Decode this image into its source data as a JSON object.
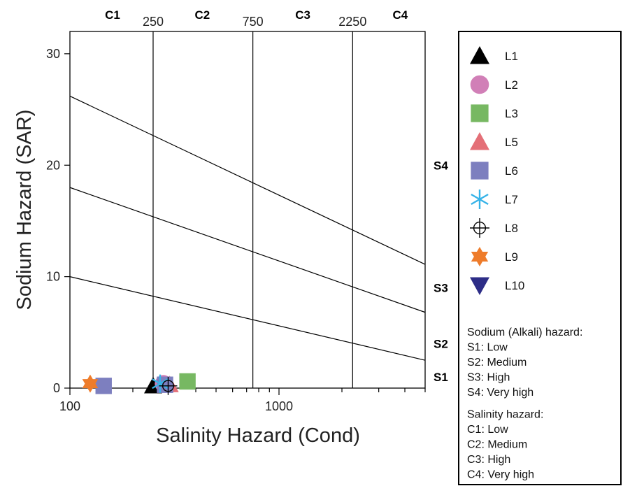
{
  "chart_data": {
    "type": "scatter",
    "xlabel": "Salinity Hazard (Cond)",
    "ylabel": "Sodium Hazard (SAR)",
    "x_scale": "log",
    "xlim": [
      100,
      5000
    ],
    "ylim": [
      0,
      32
    ],
    "x_ticks": [
      {
        "value": 100,
        "label": "100"
      },
      {
        "value": 1000,
        "label": "1000"
      }
    ],
    "y_ticks": [
      {
        "value": 0,
        "label": "0"
      },
      {
        "value": 10,
        "label": "10"
      },
      {
        "value": 20,
        "label": "20"
      },
      {
        "value": 30,
        "label": "30"
      }
    ],
    "salinity_boundaries": [
      {
        "value": 250,
        "label": "250"
      },
      {
        "value": 750,
        "label": "750"
      },
      {
        "value": 2250,
        "label": "2250"
      }
    ],
    "salinity_classes": [
      {
        "label": "C1",
        "x": 160
      },
      {
        "label": "C2",
        "x": 430
      },
      {
        "label": "C3",
        "x": 1300
      },
      {
        "label": "C4",
        "x": 3800
      }
    ],
    "sodium_lines": [
      {
        "points": [
          [
            100,
            10
          ],
          [
            5000,
            2.5
          ]
        ]
      },
      {
        "points": [
          [
            100,
            18
          ],
          [
            5000,
            6.8
          ]
        ]
      },
      {
        "points": [
          [
            100,
            26.2
          ],
          [
            5000,
            11.1
          ]
        ]
      }
    ],
    "sodium_classes": [
      {
        "label": "S1",
        "y": 1.0
      },
      {
        "label": "S2",
        "y": 4.0
      },
      {
        "label": "S3",
        "y": 9.0
      },
      {
        "label": "S4",
        "y": 20.0
      }
    ],
    "series": [
      {
        "name": "L1",
        "marker": "triangle-up",
        "color": "#000000",
        "points": [
          [
            250,
            0.2
          ]
        ]
      },
      {
        "name": "L2",
        "marker": "circle",
        "color": "#d17fb7",
        "points": [
          [
            280,
            0.4
          ]
        ]
      },
      {
        "name": "L3",
        "marker": "square",
        "color": "#77b862",
        "points": [
          [
            365,
            0.6
          ]
        ]
      },
      {
        "name": "L5",
        "marker": "triangle-up",
        "color": "#e46f77",
        "points": [
          [
            300,
            0.3
          ]
        ]
      },
      {
        "name": "L6",
        "marker": "square",
        "color": "#7d7fbf",
        "points": [
          [
            145,
            0.2
          ],
          [
            285,
            0.3
          ]
        ]
      },
      {
        "name": "L7",
        "marker": "asterisk",
        "color": "#36b3e8",
        "points": [
          [
            270,
            0.4
          ]
        ]
      },
      {
        "name": "L8",
        "marker": "crosshair-circle",
        "color": "#000000",
        "points": [
          [
            295,
            0.2
          ]
        ]
      },
      {
        "name": "L9",
        "marker": "star6",
        "color": "#ee7c2b",
        "points": [
          [
            125,
            0.4
          ]
        ]
      },
      {
        "name": "L10",
        "marker": "triangle-down",
        "color": "#2d2d87",
        "points": []
      }
    ],
    "legend_position": "right",
    "notes": [
      {
        "lines": [
          "Sodium (Alkali) hazard:",
          "S1: Low",
          "S2: Medium",
          "S3: High",
          "S4: Very high"
        ]
      },
      {
        "lines": [
          "Salinity hazard:",
          "C1: Low",
          "C2: Medium",
          "C3: High",
          "C4: Very high"
        ]
      }
    ]
  }
}
